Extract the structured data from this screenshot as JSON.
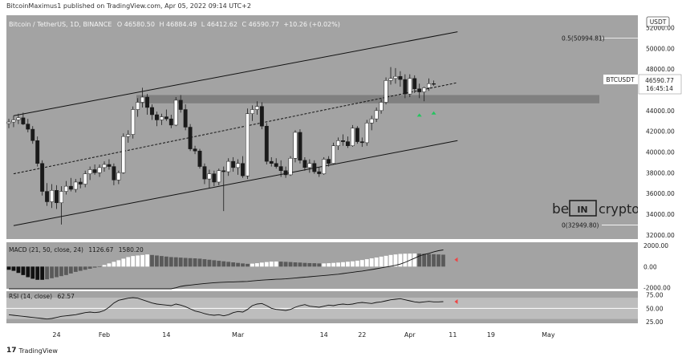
{
  "header": {
    "published": "BitcoinMaximus1 published on TradingView.com, Apr 05, 2022 09:14 UTC+2"
  },
  "symbol_line": {
    "name": "Bitcoin / TetherUS, 1D, BINANCE",
    "o_label": "O",
    "o": "46580.50",
    "h_label": "H",
    "h": "46884.49",
    "l_label": "L",
    "l": "46412.62",
    "c_label": "C",
    "c": "46590.77",
    "chg": "+10.26 (+0.02%)"
  },
  "currency_badge": "USDT",
  "price_badge": {
    "symbol": "BTCUSDT",
    "price": "46590.77",
    "countdown": "16:45:14"
  },
  "watermark": {
    "left": "be",
    "middle": "IN",
    "right": "crypto"
  },
  "footer": {
    "brand": "TradingView",
    "logo_glyph": "17"
  },
  "colors": {
    "panel_bg": "#a3a3a3",
    "up_candle": "#ffffff",
    "down_candle": "#1a1a1a",
    "zone": "#7a7a7a",
    "green_marker": "#22c55e",
    "red_marker": "#ef4444"
  },
  "chart_data": [
    {
      "type": "candlestick",
      "title": "Bitcoin / TetherUS, 1D, BINANCE",
      "x_ticks": [
        "24",
        "Feb",
        "14",
        "Mar",
        "14",
        "22",
        "Apr",
        "11",
        "19",
        "May"
      ],
      "y_ticks": [
        "52000.00",
        "50000.00",
        "48000.00",
        "46000.00",
        "44000.00",
        "42000.00",
        "40000.00",
        "38000.00",
        "36000.00",
        "34000.00",
        "32000.00"
      ],
      "ylim": [
        31600,
        53200
      ],
      "fib_levels": [
        {
          "label": "0.5(50994.81)",
          "value": 50994.81
        },
        {
          "label": "0(32949.80)",
          "value": 32949.8
        }
      ],
      "support_zone": [
        44700,
        45500
      ],
      "ohlc": [
        [
          42750,
          43200,
          42300,
          42900
        ],
        [
          42900,
          43500,
          42400,
          43100
        ],
        [
          43100,
          43700,
          42700,
          43300
        ],
        [
          43300,
          43800,
          42600,
          42700
        ],
        [
          42700,
          43200,
          41900,
          42200
        ],
        [
          42200,
          42500,
          40800,
          41100
        ],
        [
          41100,
          41500,
          38600,
          38900
        ],
        [
          38900,
          39200,
          35800,
          36200
        ],
        [
          36200,
          37000,
          34800,
          35200
        ],
        [
          35200,
          36900,
          34600,
          36300
        ],
        [
          36300,
          36800,
          34500,
          35100
        ],
        [
          35100,
          36700,
          33000,
          36200
        ],
        [
          36200,
          37200,
          35900,
          36700
        ],
        [
          36700,
          37500,
          36200,
          36400
        ],
        [
          36400,
          37400,
          36100,
          37100
        ],
        [
          37100,
          37500,
          36500,
          36900
        ],
        [
          36900,
          38200,
          36600,
          37900
        ],
        [
          37900,
          38600,
          37300,
          38300
        ],
        [
          38300,
          38800,
          37800,
          38000
        ],
        [
          38000,
          38800,
          37600,
          38500
        ],
        [
          38500,
          39100,
          38100,
          38800
        ],
        [
          38800,
          39300,
          38300,
          38600
        ],
        [
          38600,
          38900,
          36800,
          37300
        ],
        [
          37300,
          38200,
          36900,
          38000
        ],
        [
          38000,
          41800,
          37900,
          41500
        ],
        [
          41500,
          42100,
          40900,
          41700
        ],
        [
          41700,
          44400,
          41300,
          44100
        ],
        [
          44100,
          45200,
          43400,
          44800
        ],
        [
          44800,
          46200,
          44300,
          45300
        ],
        [
          45300,
          45600,
          43600,
          44300
        ],
        [
          44300,
          44600,
          43100,
          43600
        ],
        [
          43600,
          43900,
          42500,
          43100
        ],
        [
          43100,
          43700,
          42600,
          43400
        ],
        [
          43400,
          44100,
          43000,
          43200
        ],
        [
          43200,
          43600,
          42300,
          42600
        ],
        [
          42600,
          45300,
          42500,
          45000
        ],
        [
          45000,
          45500,
          43800,
          44100
        ],
        [
          44100,
          44600,
          42100,
          42400
        ],
        [
          42400,
          42700,
          40100,
          40300
        ],
        [
          40300,
          40600,
          39800,
          40100
        ],
        [
          40100,
          40300,
          38400,
          38600
        ],
        [
          38600,
          38900,
          36900,
          37400
        ],
        [
          37400,
          38300,
          36500,
          37900
        ],
        [
          37900,
          38200,
          36700,
          37100
        ],
        [
          37100,
          38400,
          36800,
          38200
        ],
        [
          38200,
          38600,
          34300,
          38100
        ],
        [
          38100,
          39400,
          37700,
          39100
        ],
        [
          39100,
          39500,
          38100,
          38500
        ],
        [
          38500,
          39300,
          37800,
          38900
        ],
        [
          38900,
          39600,
          37500,
          37700
        ],
        [
          37700,
          44200,
          37400,
          43700
        ],
        [
          43700,
          44500,
          43000,
          44100
        ],
        [
          44100,
          44900,
          43600,
          44400
        ],
        [
          44400,
          44800,
          42200,
          42500
        ],
        [
          42500,
          42800,
          38800,
          39100
        ],
        [
          39100,
          39500,
          38600,
          38900
        ],
        [
          38900,
          39400,
          38400,
          38600
        ],
        [
          38600,
          39200,
          37600,
          38200
        ],
        [
          38200,
          38600,
          37500,
          37800
        ],
        [
          37800,
          39600,
          37700,
          39400
        ],
        [
          39400,
          42100,
          39000,
          41900
        ],
        [
          41900,
          42200,
          38900,
          39200
        ],
        [
          39200,
          39500,
          38200,
          38500
        ],
        [
          38500,
          39300,
          38000,
          38900
        ],
        [
          38900,
          39200,
          37900,
          38100
        ],
        [
          38100,
          38500,
          37600,
          37900
        ],
        [
          37900,
          39500,
          37800,
          39300
        ],
        [
          39300,
          39600,
          38600,
          38900
        ],
        [
          38900,
          40900,
          38800,
          40600
        ],
        [
          40600,
          41400,
          40200,
          41100
        ],
        [
          41100,
          41700,
          40600,
          41000
        ],
        [
          41000,
          41500,
          40400,
          40600
        ],
        [
          40600,
          42600,
          40500,
          42300
        ],
        [
          42300,
          42500,
          40800,
          41000
        ],
        [
          41000,
          41400,
          40500,
          40900
        ],
        [
          40900,
          43100,
          40600,
          42800
        ],
        [
          42800,
          43500,
          42100,
          43200
        ],
        [
          43200,
          44300,
          42900,
          44000
        ],
        [
          44000,
          45100,
          43700,
          44800
        ],
        [
          44800,
          47200,
          44600,
          46900
        ],
        [
          46900,
          48200,
          46500,
          47100
        ],
        [
          47100,
          48100,
          46600,
          47300
        ],
        [
          47300,
          47800,
          46300,
          47000
        ],
        [
          47000,
          47500,
          45200,
          45600
        ],
        [
          45600,
          47500,
          45300,
          47100
        ],
        [
          47100,
          47400,
          45700,
          46100
        ],
        [
          46100,
          46600,
          45200,
          45800
        ],
        [
          45800,
          46300,
          44900,
          46200
        ],
        [
          46200,
          47100,
          45900,
          46600
        ],
        [
          46600,
          46900,
          46400,
          46590
        ]
      ],
      "channel_lines": [
        {
          "name": "upper",
          "points": [
            [
              1,
              43500
            ],
            [
              94,
              51600
            ]
          ]
        },
        {
          "name": "median",
          "points": [
            [
              1,
              37900
            ],
            [
              94,
              46700
            ]
          ]
        },
        {
          "name": "lower",
          "points": [
            [
              1,
              32900
            ],
            [
              94,
              41100
            ]
          ]
        }
      ],
      "markers": [
        {
          "index": 86,
          "value": 44500
        },
        {
          "index": 89,
          "value": 44700
        }
      ]
    },
    {
      "type": "bar",
      "title": "MACD (21, 50, close, 24)",
      "values_label": [
        "1126.67",
        "1580.20"
      ],
      "y_ticks": [
        "2000.00",
        "0.00",
        "-2000.00"
      ],
      "ylim": [
        -2100,
        2300
      ],
      "histogram": [
        -300,
        -400,
        -600,
        -800,
        -1000,
        -1150,
        -1250,
        -1250,
        -1200,
        -1100,
        -1000,
        -900,
        -800,
        -650,
        -500,
        -400,
        -300,
        -200,
        -100,
        0,
        150,
        300,
        450,
        600,
        750,
        900,
        1000,
        1050,
        1100,
        1150,
        1100,
        1050,
        1000,
        950,
        900,
        880,
        850,
        820,
        800,
        780,
        750,
        700,
        650,
        600,
        550,
        500,
        450,
        400,
        350,
        300,
        260,
        280,
        320,
        380,
        430,
        470,
        480,
        470,
        450,
        430,
        400,
        380,
        350,
        330,
        320,
        300,
        300,
        320,
        350,
        380,
        420,
        460,
        500,
        560,
        620,
        700,
        780,
        860,
        940,
        1020,
        1100,
        1150,
        1200,
        1220,
        1230,
        1240,
        1230,
        1210,
        1190,
        1170,
        1150,
        1127
      ],
      "signal_line": [
        -2500,
        -2500,
        -2500,
        -2500,
        -2500,
        -2500,
        -2500,
        -2500,
        -2500,
        -2500,
        -2500,
        -2500,
        -2500,
        -2500,
        -2500,
        -2500,
        -2500,
        -2500,
        -2500,
        -2500,
        -2500,
        -2500,
        -2500,
        -2500,
        -2500,
        -2500,
        -2500,
        -2500,
        -2500,
        -2500,
        -2500,
        -2500,
        -2500,
        -2400,
        -2200,
        -2000,
        -1870,
        -1800,
        -1750,
        -1700,
        -1650,
        -1600,
        -1560,
        -1520,
        -1500,
        -1480,
        -1460,
        -1450,
        -1430,
        -1420,
        -1400,
        -1360,
        -1320,
        -1280,
        -1250,
        -1230,
        -1200,
        -1180,
        -1160,
        -1120,
        -1080,
        -1040,
        -1000,
        -960,
        -920,
        -880,
        -840,
        -800,
        -760,
        -720,
        -660,
        -600,
        -540,
        -480,
        -420,
        -350,
        -280,
        -200,
        -120,
        -40,
        40,
        120,
        240,
        400,
        600,
        800,
        1000,
        1150,
        1250,
        1400,
        1500,
        1580
      ]
    },
    {
      "type": "line",
      "title": "RSI (14, close)",
      "value_label": "62.57",
      "y_ticks": [
        "75.00",
        "50.00",
        "25.00"
      ],
      "ylim": [
        22,
        82
      ],
      "band": [
        30,
        70
      ],
      "values": [
        38,
        37,
        36,
        35,
        34,
        33,
        32,
        31,
        30,
        31,
        33,
        35,
        36,
        37,
        38,
        40,
        42,
        43,
        42,
        43,
        46,
        52,
        60,
        65,
        67,
        69,
        70,
        69,
        66,
        63,
        60,
        58,
        57,
        56,
        55,
        58,
        56,
        53,
        49,
        45,
        43,
        40,
        38,
        37,
        38,
        36,
        38,
        42,
        44,
        43,
        48,
        55,
        58,
        59,
        55,
        50,
        48,
        47,
        46,
        48,
        52,
        55,
        57,
        54,
        53,
        52,
        54,
        56,
        55,
        57,
        58,
        57,
        58,
        60,
        61,
        60,
        59,
        61,
        62,
        64,
        66,
        67,
        68,
        66,
        64,
        62,
        61,
        62,
        63,
        62,
        62,
        62.57
      ]
    }
  ]
}
